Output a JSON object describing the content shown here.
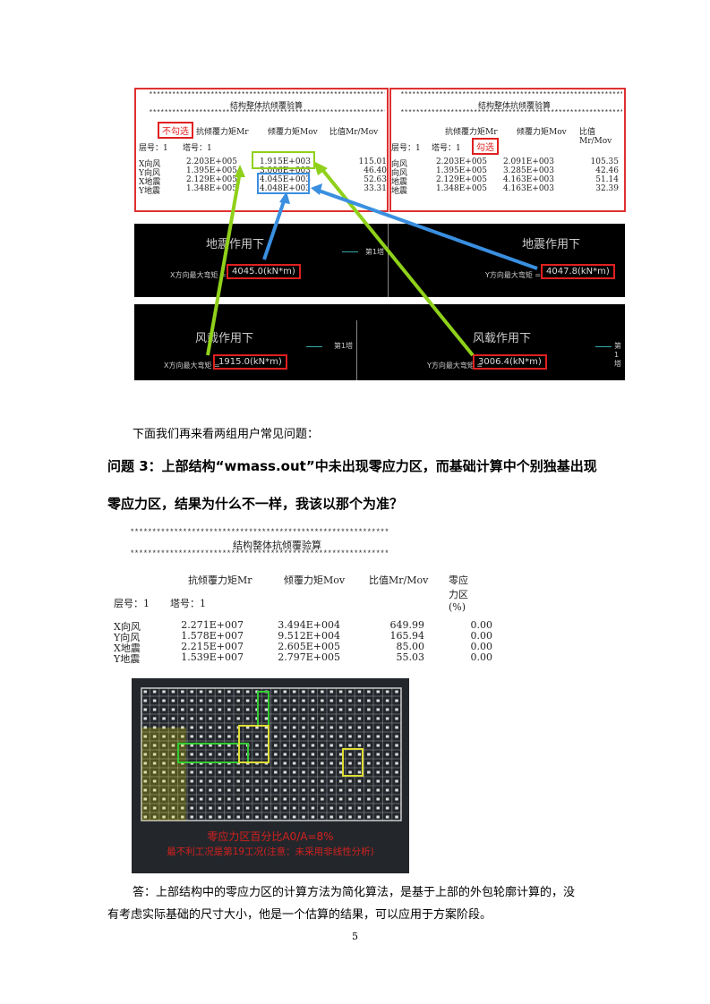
{
  "fig1": {
    "left": {
      "stars": "******************************************************************",
      "title": "结构整体抗倾覆验算",
      "tag": "不勾选",
      "headers": [
        "抗倾覆力矩Mr",
        "倾覆力矩Mov",
        "比值Mr/Mov"
      ],
      "floor": "层号：1",
      "tower": "塔号：1",
      "rows": [
        [
          "X向风",
          "2.203E+005",
          "1.915E+003",
          "115.01"
        ],
        [
          "Y向风",
          "1.395E+005",
          "3.006E+003",
          "46.40"
        ],
        [
          "X地震",
          "2.129E+005",
          "4.045E+003",
          "52.63"
        ],
        [
          "Y地震",
          "1.348E+005",
          "4.048E+003",
          "33.31"
        ]
      ]
    },
    "right": {
      "stars": "******************************************************************",
      "title": "结构整体抗倾覆验算",
      "tag": "勾选",
      "headers": [
        "抗倾覆力矩Mr",
        "倾覆力矩Mov",
        "比值Mr/Mov"
      ],
      "floor": "层号：1",
      "tower": "塔号：1",
      "rows": [
        [
          "向风",
          "2.203E+005",
          "2.091E+003",
          "105.35"
        ],
        [
          "向风",
          "1.395E+005",
          "3.285E+003",
          "42.46"
        ],
        [
          "地震",
          "2.129E+005",
          "4.163E+003",
          "51.14"
        ],
        [
          "地震",
          "1.348E+005",
          "4.163E+003",
          "32.39"
        ]
      ]
    },
    "cad": [
      {
        "title": "地震作用下",
        "label": "X方向最大弯矩 =",
        "value": "4045.0(kN*m)",
        "legend": "第1塔"
      },
      {
        "title": "地震作用下",
        "label": "Y方向最大弯矩 =",
        "value": "4047.8(kN*m)",
        "legend": ""
      },
      {
        "title": "风载作用下",
        "label": "X方向最大弯矩 =",
        "value": "1915.0(kN*m)",
        "legend": "第1塔"
      },
      {
        "title": "风载作用下",
        "label": "Y方向最大弯矩 =",
        "value": "3006.4(kN*m)",
        "legend": "第1塔"
      }
    ],
    "colors": {
      "green": "#8fd11a",
      "blue": "#3a8fe0",
      "red": "#e02020"
    }
  },
  "intro": "下面我们再来看两组用户常见问题：",
  "question": [
    "问题 3：上部结构“wmass.out”中未出现零应力区，而基础计算中个别独基出现",
    "零应力区，结果为什么不一样，我该以那个为准？"
  ],
  "table2": {
    "stars": "***********************************************************",
    "title": "结构整体抗倾覆验算",
    "headers": [
      "抗倾覆力矩Mr",
      "倾覆力矩Mov",
      "比值Mr/Mov",
      "零应力区(%)"
    ],
    "floor": "层号：1",
    "tower": "塔号：1",
    "rows": [
      [
        "X向风",
        "2.271E+007",
        "3.494E+004",
        "649.99",
        "0.00"
      ],
      [
        "Y向风",
        "1.578E+007",
        "9.512E+004",
        "165.94",
        "0.00"
      ],
      [
        "X地震",
        "2.215E+007",
        "2.605E+005",
        "85.00",
        "0.00"
      ],
      [
        "Y地震",
        "1.539E+007",
        "2.797E+005",
        "55.03",
        "0.00"
      ]
    ]
  },
  "fig2": {
    "line1": "零应力区百分比A0/A=8%",
    "line2": "最不利工况是第19工况(注意：未采用非线性分析)"
  },
  "answer": [
    "答：上部结构中的零应力区的计算方法为简化算法，是基于上部的外包轮廓计算的，没",
    "有考虑实际基础的尺寸大小，他是一个估算的结果，可以应用于方案阶段。"
  ],
  "page_number": "5"
}
